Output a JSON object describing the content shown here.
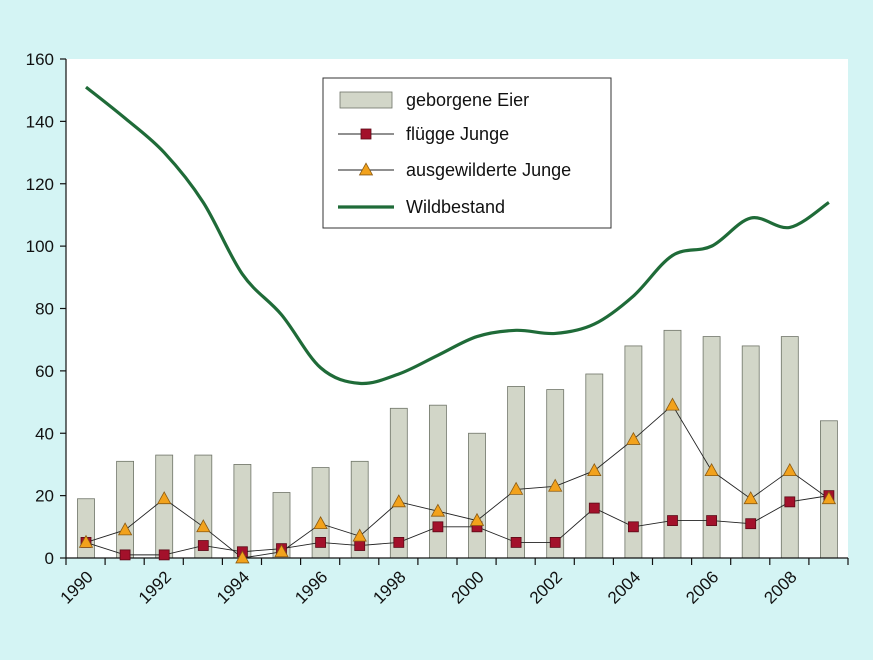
{
  "colors": {
    "background": "#d4f4f4",
    "plot_area": "#ffffff",
    "bar_fill": "#d2d6c8",
    "bar_stroke": "#6f7468",
    "wild_line": "#1f6b38",
    "triangle_fill": "#f2a21c",
    "triangle_stroke": "#8a5a12",
    "square_fill": "#a3112b",
    "square_stroke": "#5a0a17",
    "thin_line": "#222222"
  },
  "chart_data": {
    "type": "bar",
    "title": "",
    "xlabel": "",
    "ylabel": "",
    "ylim": [
      0,
      160
    ],
    "y_ticks": [
      0,
      20,
      40,
      60,
      80,
      100,
      120,
      140,
      160
    ],
    "x_tick_labels": [
      "1990",
      "1992",
      "1994",
      "1996",
      "1998",
      "2000",
      "2002",
      "2004",
      "2006",
      "2008"
    ],
    "grid": false,
    "legend_position": "top-center",
    "categories": [
      "1990",
      "1991",
      "1992",
      "1993",
      "1994",
      "1995",
      "1996",
      "1997",
      "1998",
      "1999",
      "2000",
      "2001",
      "2002",
      "2003",
      "2004",
      "2005",
      "2006",
      "2007",
      "2008",
      "2009"
    ],
    "series": [
      {
        "name": "geborgene Eier",
        "kind": "bar",
        "values": [
          19,
          31,
          33,
          33,
          30,
          21,
          29,
          31,
          48,
          49,
          40,
          55,
          54,
          59,
          68,
          73,
          71,
          68,
          71,
          44
        ]
      },
      {
        "name": "flügge Junge",
        "kind": "line-square",
        "values": [
          5,
          1,
          1,
          4,
          2,
          3,
          5,
          4,
          5,
          10,
          10,
          5,
          5,
          16,
          10,
          12,
          12,
          11,
          18,
          20
        ]
      },
      {
        "name": "ausgewilderte Junge",
        "kind": "line-triangle",
        "values": [
          5,
          9,
          19,
          10,
          0,
          2,
          11,
          7,
          18,
          15,
          12,
          22,
          23,
          28,
          38,
          49,
          28,
          19,
          28,
          19
        ]
      },
      {
        "name": "Wildbestand",
        "kind": "smooth-line",
        "x": [
          1990,
          1991,
          1992,
          1993,
          1994,
          1995,
          1996,
          1997,
          1998,
          1999,
          2000,
          2001,
          2002,
          2003,
          2004,
          2005,
          2006,
          2007,
          2008,
          2009
        ],
        "values": [
          151,
          141,
          130,
          114,
          91,
          78,
          61,
          56,
          59,
          65,
          71,
          73,
          72,
          75,
          84,
          97,
          100,
          109,
          106,
          114
        ]
      }
    ]
  }
}
